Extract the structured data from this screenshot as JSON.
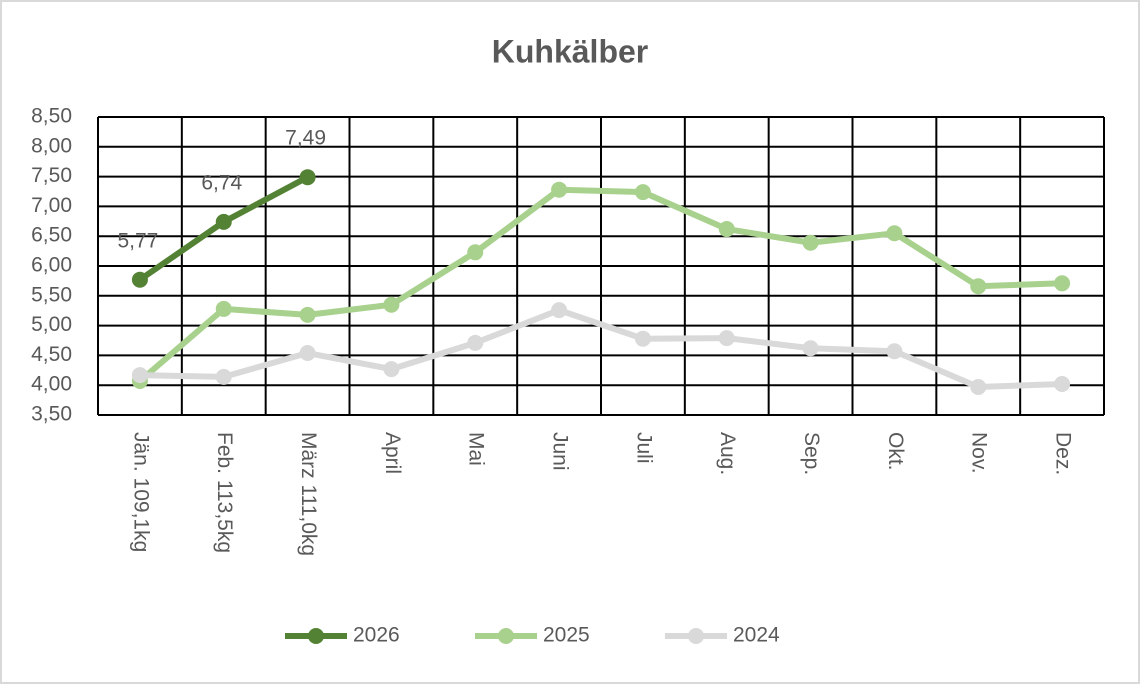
{
  "chart_data": {
    "type": "line",
    "title": "Kuhkälber",
    "categories": [
      "Jän. 109,1kg",
      "Feb. 113,5kg",
      "März 111,0kg",
      "April",
      "Mai",
      "Juni",
      "Juli",
      "Aug.",
      "Sep.",
      "Okt.",
      "Nov.",
      "Dez."
    ],
    "series": [
      {
        "name": "2026",
        "color": "#548235",
        "values": [
          5.77,
          6.74,
          7.49,
          null,
          null,
          null,
          null,
          null,
          null,
          null,
          null,
          null
        ],
        "value_labels": [
          "5,77",
          "6,74",
          "7,49",
          null,
          null,
          null,
          null,
          null,
          null,
          null,
          null,
          null
        ]
      },
      {
        "name": "2025",
        "color": "#a9d18e",
        "values": [
          4.07,
          5.28,
          5.18,
          5.35,
          6.23,
          7.28,
          7.24,
          6.62,
          6.39,
          6.55,
          5.66,
          5.71
        ]
      },
      {
        "name": "2024",
        "color": "#d9d9d9",
        "values": [
          4.17,
          4.14,
          4.54,
          4.27,
          4.71,
          5.26,
          4.78,
          4.79,
          4.62,
          4.57,
          3.97,
          4.02
        ]
      }
    ],
    "ylim": [
      3.5,
      8.5
    ],
    "yticks": [
      {
        "value": 3.5,
        "label": "3,50"
      },
      {
        "value": 4,
        "label": "4,00"
      },
      {
        "value": 4.5,
        "label": "4,50"
      },
      {
        "value": 5,
        "label": "5,00"
      },
      {
        "value": 5.5,
        "label": "5,50"
      },
      {
        "value": 6,
        "label": "6,00"
      },
      {
        "value": 6.5,
        "label": "6,50"
      },
      {
        "value": 7,
        "label": "7,00"
      },
      {
        "value": 7.5,
        "label": "7,50"
      },
      {
        "value": 8,
        "label": "8,00"
      },
      {
        "value": 8.5,
        "label": "8,50"
      }
    ],
    "grid": true,
    "legend": "bottom"
  }
}
